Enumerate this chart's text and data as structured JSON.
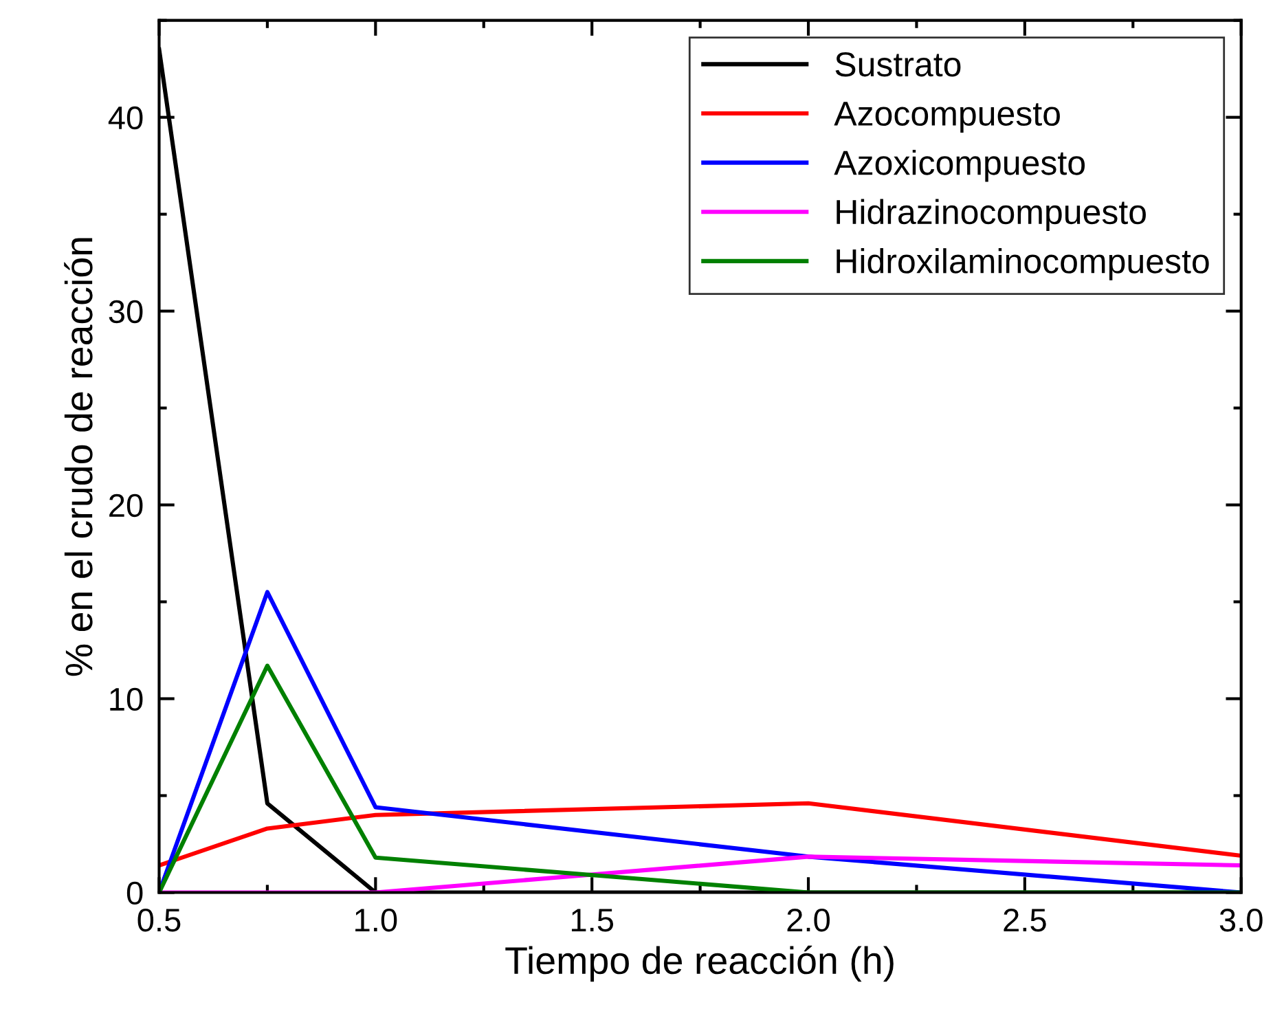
{
  "chart_data": {
    "type": "line",
    "xlabel": "Tiempo de reacción (h)",
    "ylabel": "% en el crudo de reacción",
    "x": [
      0.5,
      0.75,
      1.0,
      2.0,
      3.0
    ],
    "series": [
      {
        "name": "Sustrato",
        "color": "#000000",
        "values": [
          43.5,
          4.6,
          0,
          0,
          0
        ]
      },
      {
        "name": "Azocompuesto",
        "color": "#ff0000",
        "values": [
          1.4,
          3.3,
          4.0,
          4.6,
          1.9
        ]
      },
      {
        "name": "Azoxicompuesto",
        "color": "#0000ff",
        "values": [
          0,
          15.5,
          4.4,
          1.85,
          0
        ]
      },
      {
        "name": "Hidrazinocompuesto",
        "color": "#ff00ff",
        "values": [
          0,
          0,
          0,
          1.85,
          1.4
        ]
      },
      {
        "name": "Hidroxilaminocompuesto",
        "color": "#008000",
        "values": [
          0,
          11.7,
          1.8,
          0,
          0
        ]
      }
    ],
    "xlim": [
      0.5,
      3.0
    ],
    "ylim": [
      0,
      45
    ],
    "xticks": [
      0.5,
      {
        "value": 1,
        "label": "1.0"
      },
      1.5,
      {
        "value": 2,
        "label": "2.0"
      },
      2.5,
      {
        "value": 3,
        "label": "3.0"
      }
    ],
    "yticks": [
      0,
      10,
      20,
      30,
      40
    ],
    "grid": false,
    "legend": "top right",
    "marker": "none",
    "line_style": "solid"
  }
}
